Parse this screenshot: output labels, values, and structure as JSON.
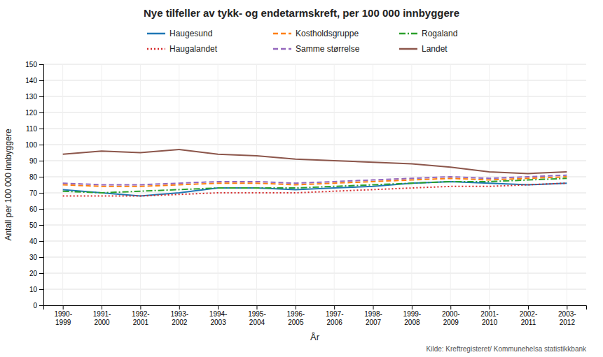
{
  "chart_data": {
    "type": "line",
    "title": "Nye tilfeller av tykk- og endetarmskreft, per 100 000 innbyggere",
    "y_label": "Antall per 100 000 innbyggere",
    "x_label": "År",
    "annotations": [
      "Kilde: Kreftregisteret/ Kommunehelsa statistikkbank"
    ],
    "categories": [
      "1990-\n1999",
      "1991-\n2000",
      "1992-\n2001",
      "1993-\n2002",
      "1994-\n2003",
      "1995-\n2004",
      "1996-\n2005",
      "1997-\n2006",
      "1998-\n2007",
      "1999-\n2008",
      "2000-\n2009",
      "2001-\n2010",
      "2002-\n2011",
      "2003-\n2012"
    ],
    "series": [
      {
        "name": "Haugesund",
        "line_style": "solid",
        "values": [
          72,
          70,
          68,
          70,
          73,
          73,
          72,
          73,
          74,
          76,
          77,
          76,
          75,
          76
        ]
      },
      {
        "name": "Kostholdsgruppe",
        "line_style": "dashed",
        "values": [
          75,
          74,
          74,
          75,
          76,
          76,
          75,
          76,
          77,
          78,
          79,
          78,
          79,
          80
        ]
      },
      {
        "name": "Rogaland",
        "line_style": "dashdot",
        "values": [
          71,
          70,
          71,
          72,
          73,
          73,
          73,
          74,
          75,
          76,
          77,
          77,
          78,
          79
        ]
      },
      {
        "name": "Haugalandet",
        "line_style": "dotted",
        "values": [
          68,
          68,
          68,
          69,
          70,
          70,
          70,
          71,
          72,
          73,
          74,
          74,
          75,
          76
        ]
      },
      {
        "name": "Samme størrelse",
        "line_style": "dashed",
        "values": [
          76,
          75,
          75,
          76,
          77,
          77,
          76,
          77,
          78,
          79,
          80,
          79,
          80,
          81
        ]
      },
      {
        "name": "Landet",
        "line_style": "solid",
        "values": [
          94,
          96,
          95,
          97,
          94,
          93,
          91,
          90,
          89,
          88,
          86,
          83,
          82,
          83
        ]
      }
    ],
    "ylim": [
      0,
      150
    ],
    "yticks": [
      0,
      10,
      20,
      30,
      40,
      50,
      60,
      70,
      80,
      90,
      100,
      110,
      120,
      130,
      140,
      150
    ],
    "grid": true,
    "legend": "top"
  }
}
